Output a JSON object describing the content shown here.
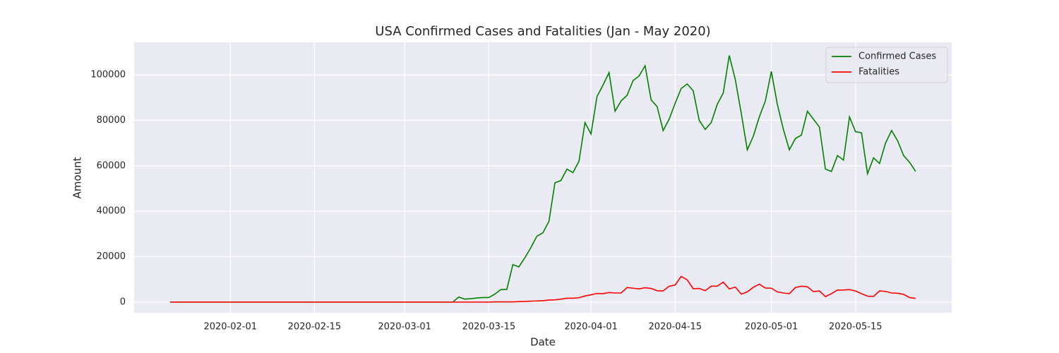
{
  "chart_data": {
    "type": "line",
    "title": "USA Confirmed Cases and Fatalities (Jan - May 2020)",
    "x_label": "Date",
    "y_label": "Amount",
    "x": [
      "2020-01-22",
      "2020-01-23",
      "2020-01-24",
      "2020-01-25",
      "2020-01-26",
      "2020-01-27",
      "2020-01-28",
      "2020-01-29",
      "2020-01-30",
      "2020-01-31",
      "2020-02-01",
      "2020-02-02",
      "2020-02-03",
      "2020-02-04",
      "2020-02-05",
      "2020-02-06",
      "2020-02-07",
      "2020-02-08",
      "2020-02-09",
      "2020-02-10",
      "2020-02-11",
      "2020-02-12",
      "2020-02-13",
      "2020-02-14",
      "2020-02-15",
      "2020-02-16",
      "2020-02-17",
      "2020-02-18",
      "2020-02-19",
      "2020-02-20",
      "2020-02-21",
      "2020-02-22",
      "2020-02-23",
      "2020-02-24",
      "2020-02-25",
      "2020-02-26",
      "2020-02-27",
      "2020-02-28",
      "2020-02-29",
      "2020-03-01",
      "2020-03-02",
      "2020-03-03",
      "2020-03-04",
      "2020-03-05",
      "2020-03-06",
      "2020-03-07",
      "2020-03-08",
      "2020-03-09",
      "2020-03-10",
      "2020-03-11",
      "2020-03-12",
      "2020-03-13",
      "2020-03-14",
      "2020-03-15",
      "2020-03-16",
      "2020-03-17",
      "2020-03-18",
      "2020-03-19",
      "2020-03-20",
      "2020-03-21",
      "2020-03-22",
      "2020-03-23",
      "2020-03-24",
      "2020-03-25",
      "2020-03-26",
      "2020-03-27",
      "2020-03-28",
      "2020-03-29",
      "2020-03-30",
      "2020-03-31",
      "2020-04-01",
      "2020-04-02",
      "2020-04-03",
      "2020-04-04",
      "2020-04-05",
      "2020-04-06",
      "2020-04-07",
      "2020-04-08",
      "2020-04-09",
      "2020-04-10",
      "2020-04-11",
      "2020-04-12",
      "2020-04-13",
      "2020-04-14",
      "2020-04-15",
      "2020-04-16",
      "2020-04-17",
      "2020-04-18",
      "2020-04-19",
      "2020-04-20",
      "2020-04-21",
      "2020-04-22",
      "2020-04-23",
      "2020-04-24",
      "2020-04-25",
      "2020-04-26",
      "2020-04-27",
      "2020-04-28",
      "2020-04-29",
      "2020-04-30",
      "2020-05-01",
      "2020-05-02",
      "2020-05-03",
      "2020-05-04",
      "2020-05-05",
      "2020-05-06",
      "2020-05-07",
      "2020-05-08",
      "2020-05-09",
      "2020-05-10",
      "2020-05-11",
      "2020-05-12",
      "2020-05-13",
      "2020-05-14",
      "2020-05-15",
      "2020-05-16",
      "2020-05-17",
      "2020-05-18",
      "2020-05-19",
      "2020-05-20",
      "2020-05-21",
      "2020-05-22",
      "2020-05-23",
      "2020-05-24",
      "2020-05-25"
    ],
    "series": [
      {
        "name": "Confirmed Cases",
        "color": "#008000",
        "values": [
          0,
          0,
          0,
          0,
          0,
          0,
          0,
          0,
          0,
          0,
          0,
          0,
          0,
          0,
          0,
          0,
          0,
          0,
          0,
          0,
          0,
          0,
          0,
          0,
          0,
          0,
          0,
          0,
          0,
          0,
          0,
          0,
          0,
          0,
          0,
          0,
          0,
          0,
          0,
          0,
          0,
          0,
          0,
          0,
          0,
          0,
          0,
          0,
          2200,
          1300,
          1500,
          1800,
          2000,
          2000,
          3500,
          5500,
          5600,
          16500,
          15500,
          19500,
          24000,
          29000,
          30500,
          35500,
          52500,
          53500,
          58500,
          57000,
          62000,
          79000,
          74000,
          90500,
          95500,
          101000,
          84000,
          88500,
          91000,
          97500,
          99500,
          104000,
          89000,
          86000,
          75500,
          80500,
          87500,
          94000,
          96000,
          93000,
          80000,
          76000,
          79000,
          87000,
          92000,
          108500,
          98000,
          83000,
          67000,
          73000,
          81500,
          88500,
          101500,
          87000,
          76000,
          67000,
          72000,
          73500,
          84000,
          80500,
          77000,
          58500,
          57500,
          64500,
          62500,
          81500,
          75000,
          74500,
          56500,
          63500,
          61000,
          70000,
          75500,
          71000,
          64500,
          61500,
          57500
        ]
      },
      {
        "name": "Fatalities",
        "color": "#ff0000",
        "values": [
          0,
          0,
          0,
          0,
          0,
          0,
          0,
          0,
          0,
          0,
          0,
          0,
          0,
          0,
          0,
          0,
          0,
          0,
          0,
          0,
          0,
          0,
          0,
          0,
          0,
          0,
          0,
          0,
          0,
          0,
          0,
          0,
          0,
          0,
          0,
          0,
          0,
          0,
          0,
          0,
          0,
          0,
          0,
          0,
          0,
          0,
          0,
          0,
          0,
          0,
          0,
          0,
          0,
          0,
          100,
          100,
          100,
          100,
          200,
          300,
          400,
          500,
          600,
          900,
          1000,
          1300,
          1700,
          1700,
          1900,
          2700,
          3200,
          3800,
          3700,
          4200,
          4000,
          4000,
          6400,
          6100,
          5800,
          6300,
          6000,
          5000,
          4900,
          7000,
          7500,
          11300,
          9800,
          5900,
          6000,
          5000,
          7000,
          7000,
          8800,
          5800,
          6600,
          3500,
          4500,
          6500,
          7900,
          6200,
          6100,
          4500,
          4000,
          3700,
          6400,
          7000,
          6700,
          4600,
          4900,
          2400,
          3700,
          5300,
          5300,
          5500,
          4900,
          3700,
          2600,
          2500,
          4900,
          4700,
          4000,
          3900,
          3400,
          2000,
          1600
        ]
      }
    ],
    "xlim": [
      "2020-01-16",
      "2020-05-31"
    ],
    "xticks": [
      "2020-02-01",
      "2020-02-15",
      "2020-03-01",
      "2020-03-15",
      "2020-04-01",
      "2020-04-15",
      "2020-05-01",
      "2020-05-15"
    ],
    "ylim": [
      -4700,
      114300
    ],
    "yticks": [
      0,
      20000,
      40000,
      60000,
      80000,
      100000
    ],
    "grid": true,
    "legend": "upper right"
  }
}
